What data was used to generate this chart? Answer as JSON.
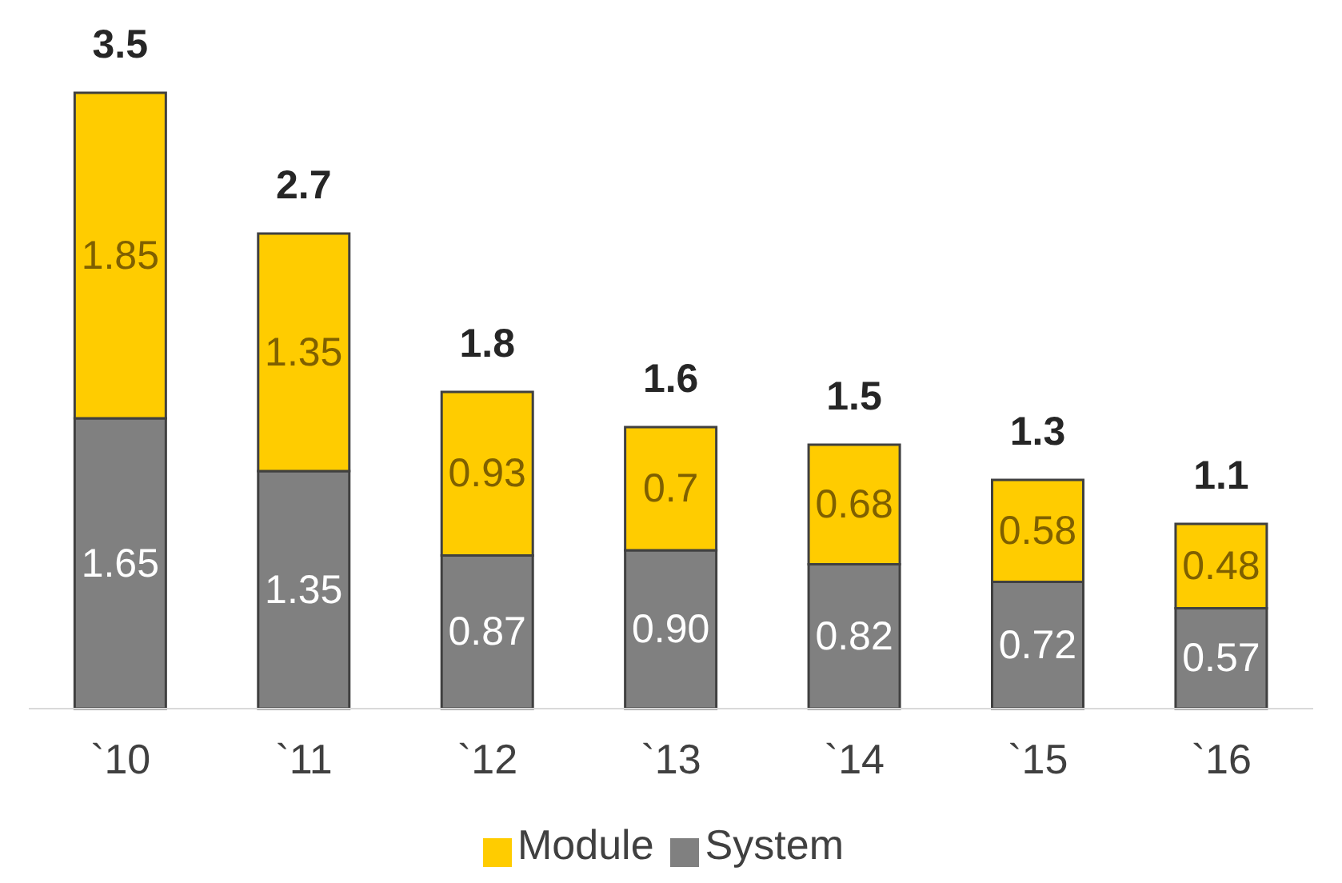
{
  "chart_data": {
    "type": "bar",
    "stacked": true,
    "categories": [
      "`10",
      "`11",
      "`12",
      "`13",
      "`14",
      "`15",
      "`16"
    ],
    "series": [
      {
        "name": "System",
        "color": "#808080",
        "values": [
          1.65,
          1.35,
          0.87,
          0.9,
          0.82,
          0.72,
          0.57
        ],
        "value_labels": [
          "1.65",
          "1.35",
          "0.87",
          "0.90",
          "0.82",
          "0.72",
          "0.57"
        ]
      },
      {
        "name": "Module",
        "color": "#ffcc00",
        "values": [
          1.85,
          1.35,
          0.93,
          0.7,
          0.68,
          0.58,
          0.48
        ],
        "value_labels": [
          "1.85",
          "1.35",
          "0.93",
          "0.7",
          "0.68",
          "0.58",
          "0.48"
        ]
      }
    ],
    "totals": [
      "3.5",
      "2.7",
      "1.8",
      "1.6",
      "1.5",
      "1.3",
      "1.1"
    ],
    "legend": "bottom",
    "grid": false
  }
}
